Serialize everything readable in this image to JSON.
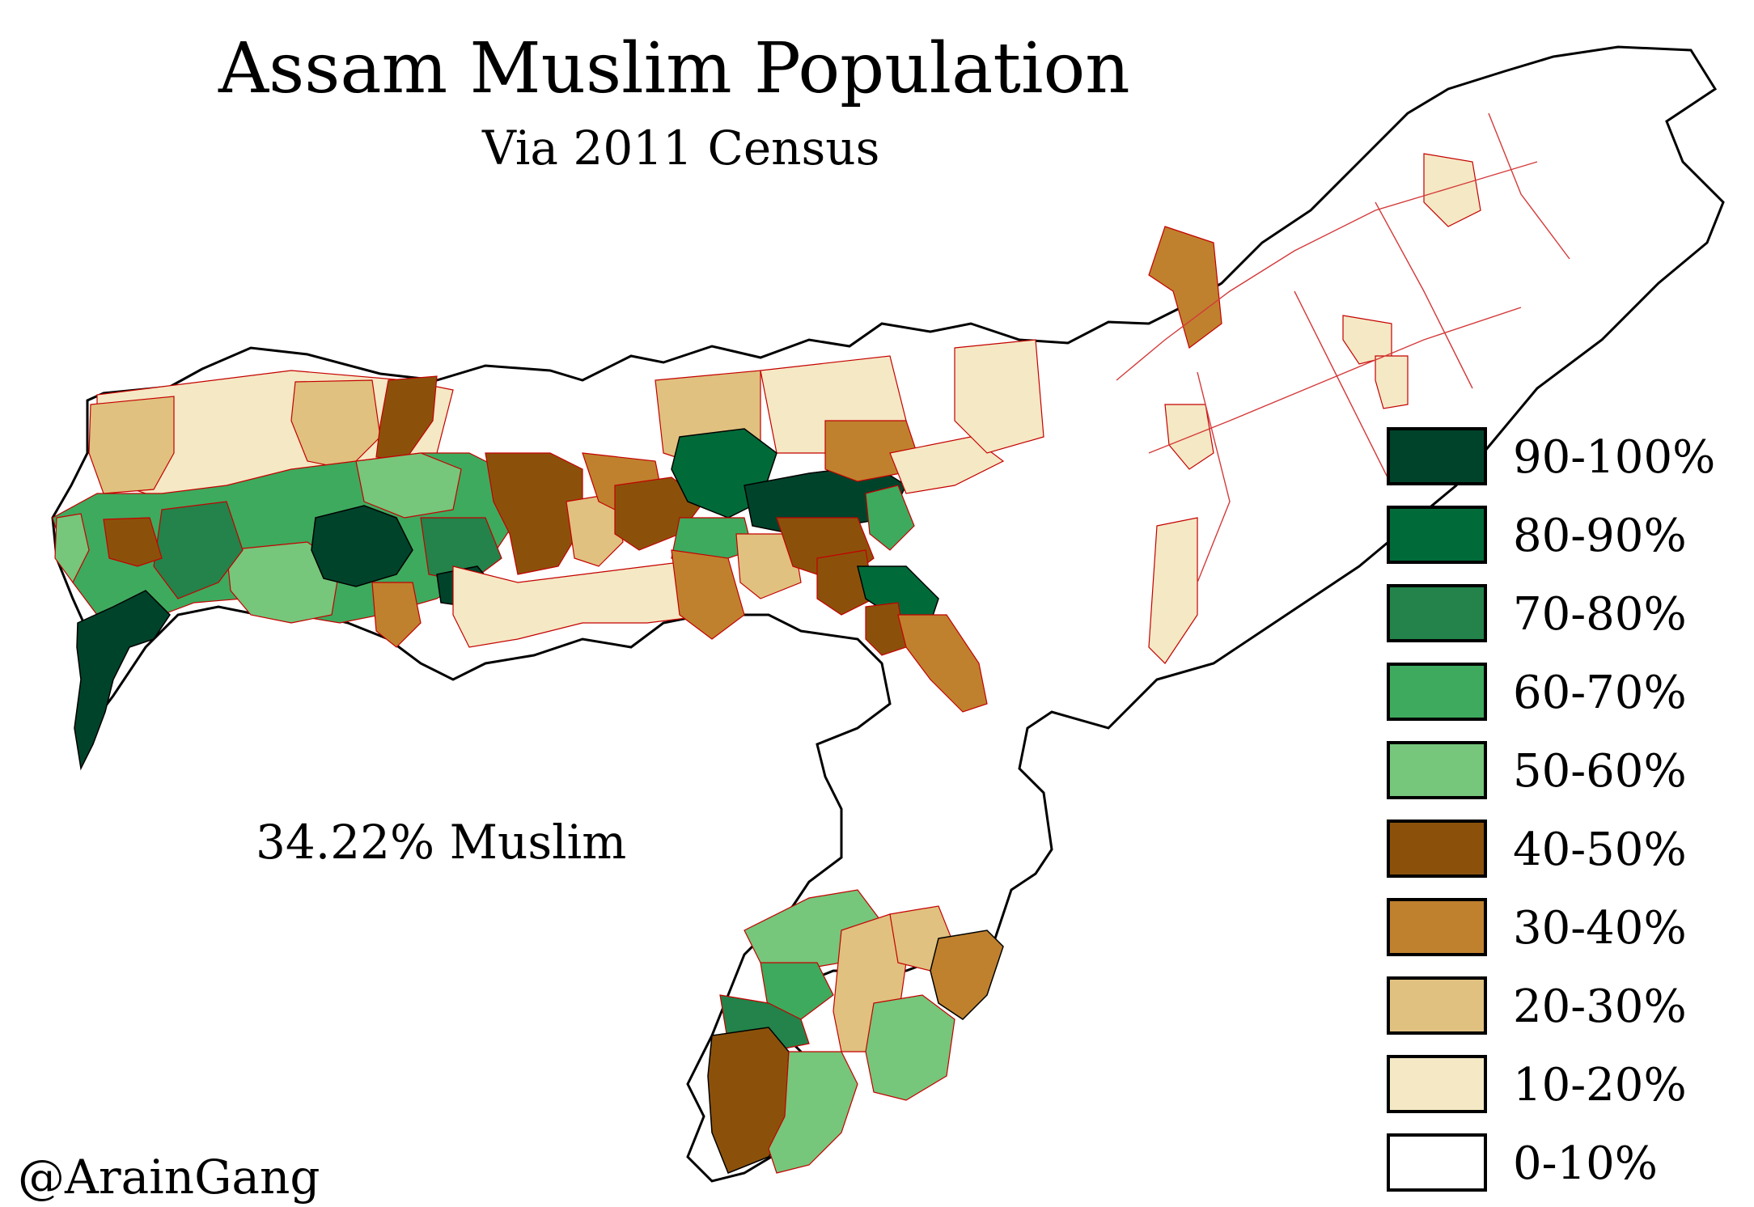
{
  "title": "Assam Muslim Population",
  "subtitle": "Via 2011 Census",
  "summary": "34.22% Muslim",
  "credit": "@ArainGang",
  "legend": {
    "items": [
      {
        "label": "90-100%",
        "color": "#00432b"
      },
      {
        "label": "80-90%",
        "color": "#006b39"
      },
      {
        "label": "70-80%",
        "color": "#23834a"
      },
      {
        "label": "60-70%",
        "color": "#3eaa5e"
      },
      {
        "label": "50-60%",
        "color": "#76c67b"
      },
      {
        "label": "40-50%",
        "color": "#8b510b"
      },
      {
        "label": "30-40%",
        "color": "#bf812e"
      },
      {
        "label": "20-30%",
        "color": "#e0c17f"
      },
      {
        "label": "10-20%",
        "color": "#f5e8c4"
      },
      {
        "label": "0-10%",
        "color": "#ffffff"
      }
    ]
  },
  "map": {
    "region": "Assam",
    "unit_type": "districts / revenue circles"
  }
}
